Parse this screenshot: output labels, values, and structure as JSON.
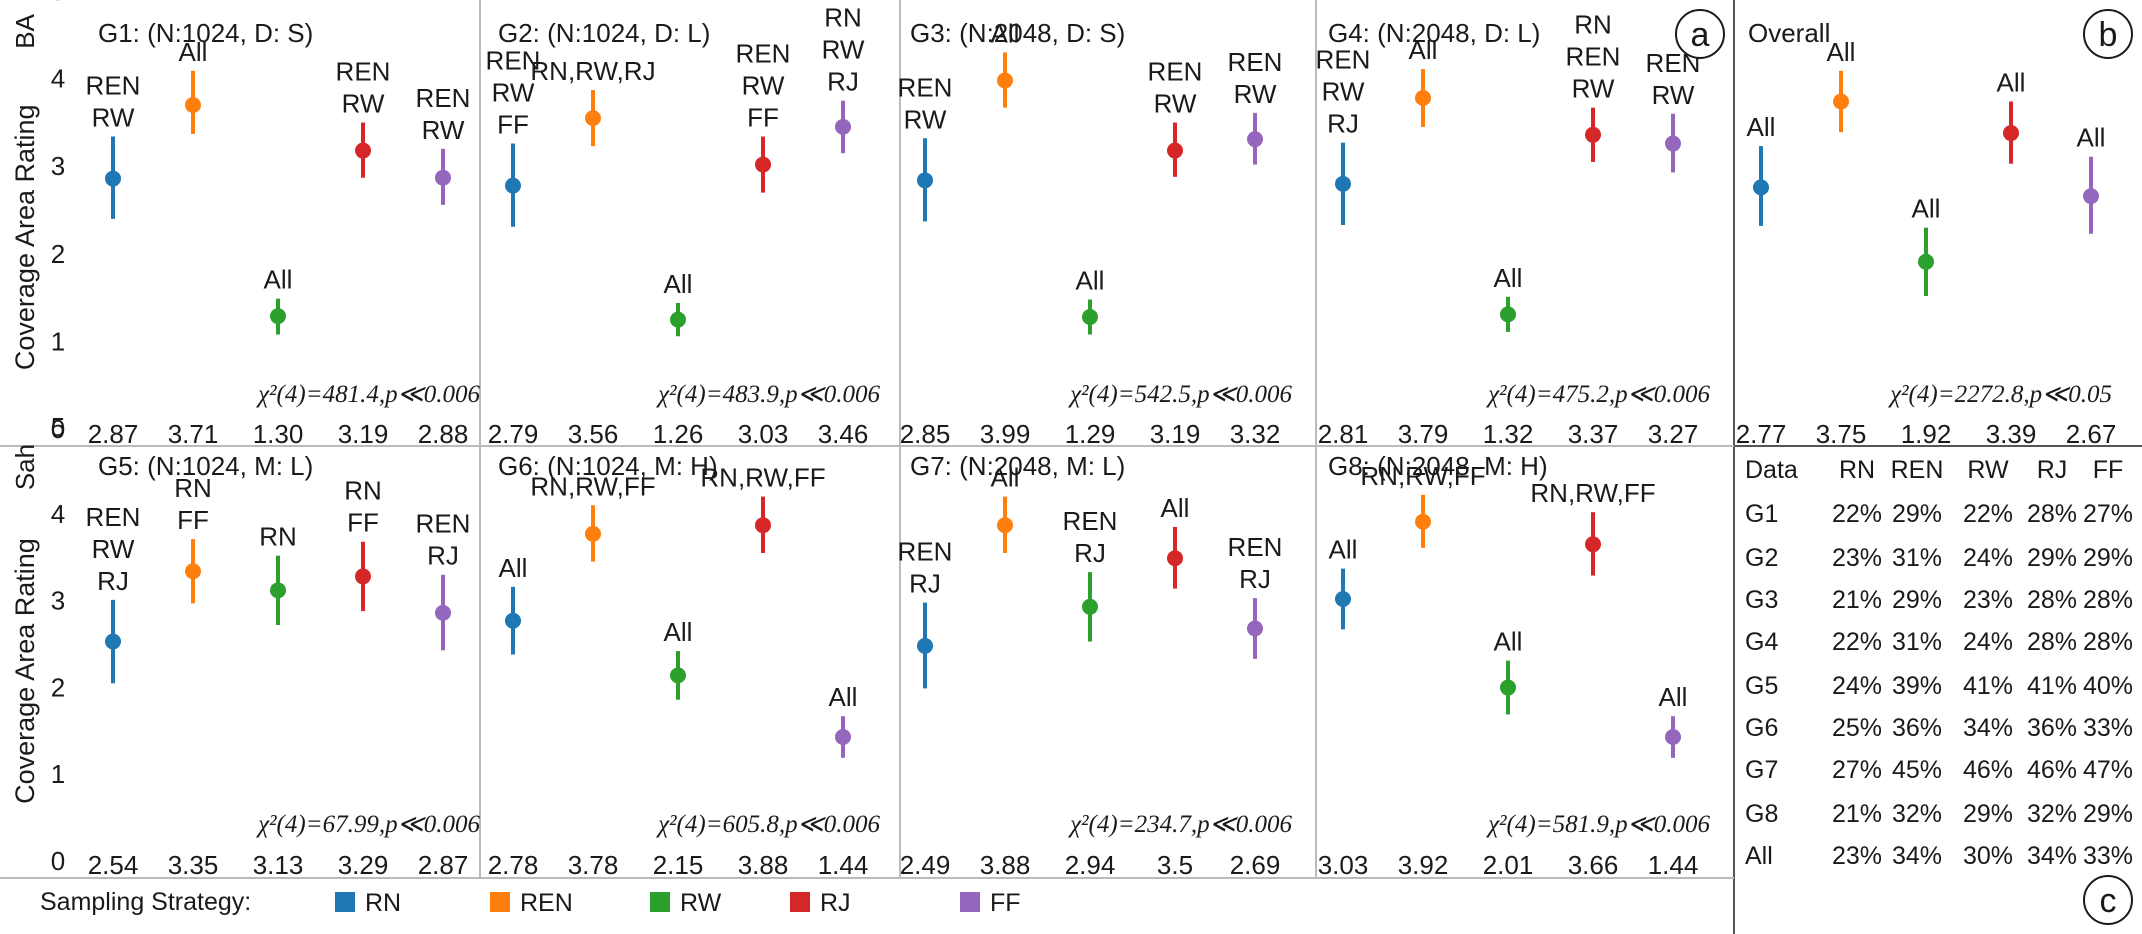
{
  "strategies": [
    "RN",
    "REN",
    "RW",
    "RJ",
    "FF"
  ],
  "colors": {
    "RN": "#1f77b4",
    "REN": "#ff7f0e",
    "RW": "#2ca02c",
    "RJ": "#d62728",
    "FF": "#9467bd"
  },
  "legend_title": "Sampling Strategy:",
  "corner_labels": [
    "a",
    "b",
    "c"
  ],
  "chart_data": [
    {
      "type": "scatter",
      "row_label": "BA",
      "ylabel": "Coverage Area Rating",
      "ylim": [
        0,
        5
      ],
      "yticks": [
        "0",
        "1",
        "2",
        "3",
        "4",
        "5"
      ],
      "panels": [
        {
          "title": "G1: (N:1024, D: S)",
          "stat": "χ²(4)=481.4,p≪0.006",
          "means": [
            "2.87",
            "3.71",
            "1.30",
            "3.19",
            "2.88"
          ],
          "values": [
            2.87,
            3.71,
            1.3,
            3.19,
            2.88
          ],
          "ci": [
            [
              2.41,
              3.35
            ],
            [
              3.38,
              4.1
            ],
            [
              1.09,
              1.5
            ],
            [
              2.88,
              3.51
            ],
            [
              2.57,
              3.21
            ]
          ],
          "labels": [
            [
              "REN",
              "RW"
            ],
            [
              "All"
            ],
            [
              "All"
            ],
            [
              "REN",
              "RW"
            ],
            [
              "REN",
              "RW"
            ]
          ]
        },
        {
          "title": "G2: (N:1024, D: L)",
          "stat": "χ²(4)=483.9,p≪0.006",
          "means": [
            "2.79",
            "3.56",
            "1.26",
            "3.03",
            "3.46"
          ],
          "values": [
            2.79,
            3.56,
            1.26,
            3.03,
            3.46
          ],
          "ci": [
            [
              2.32,
              3.27
            ],
            [
              3.24,
              3.88
            ],
            [
              1.07,
              1.45
            ],
            [
              2.71,
              3.35
            ],
            [
              3.16,
              3.76
            ]
          ],
          "labels": [
            [
              "REN",
              "RW",
              "FF"
            ],
            [
              "RN,RW,RJ"
            ],
            [
              "All"
            ],
            [
              "REN",
              "RW",
              "FF"
            ],
            [
              "RN",
              "RW",
              "RJ"
            ]
          ]
        },
        {
          "title": "G3: (N:2048, D: S)",
          "stat": "χ²(4)=542.5,p≪0.006",
          "means": [
            "2.85",
            "3.99",
            "1.29",
            "3.19",
            "3.32"
          ],
          "values": [
            2.85,
            3.99,
            1.29,
            3.19,
            3.32
          ],
          "ci": [
            [
              2.38,
              3.33
            ],
            [
              3.68,
              4.31
            ],
            [
              1.09,
              1.49
            ],
            [
              2.89,
              3.51
            ],
            [
              3.03,
              3.62
            ]
          ],
          "labels": [
            [
              "REN",
              "RW"
            ],
            [
              "All"
            ],
            [
              "All"
            ],
            [
              "REN",
              "RW"
            ],
            [
              "REN",
              "RW"
            ]
          ]
        },
        {
          "title": "G4: (N:2048, D: L)",
          "stat": "χ²(4)=475.2,p≪0.006",
          "means": [
            "2.81",
            "3.79",
            "1.32",
            "3.37",
            "3.27"
          ],
          "values": [
            2.81,
            3.79,
            1.32,
            3.37,
            3.27
          ],
          "ci": [
            [
              2.34,
              3.28
            ],
            [
              3.46,
              4.12
            ],
            [
              1.12,
              1.52
            ],
            [
              3.06,
              3.68
            ],
            [
              2.94,
              3.61
            ]
          ],
          "labels": [
            [
              "REN",
              "RW",
              "RJ"
            ],
            [
              "All"
            ],
            [
              "All"
            ],
            [
              "RN",
              "REN",
              "RW"
            ],
            [
              "REN",
              "RW"
            ]
          ]
        },
        {
          "title": "Overall",
          "stat": "χ²(4)=2272.8,p≪0.05",
          "means": [
            "2.77",
            "3.75",
            "1.92",
            "3.39",
            "2.67"
          ],
          "values": [
            2.77,
            3.75,
            1.92,
            3.39,
            2.67
          ],
          "ci": [
            [
              2.33,
              3.24
            ],
            [
              3.4,
              4.1
            ],
            [
              1.53,
              2.31
            ],
            [
              3.04,
              3.75
            ],
            [
              2.24,
              3.12
            ]
          ],
          "labels": [
            [
              "All"
            ],
            [
              "All"
            ],
            [
              "All"
            ],
            [
              "All"
            ],
            [
              "All"
            ]
          ]
        }
      ]
    },
    {
      "type": "scatter",
      "row_label": "Sah",
      "ylabel": "Coverage Area Rating",
      "ylim": [
        0,
        5
      ],
      "yticks": [
        "0",
        "1",
        "2",
        "3",
        "4",
        "5"
      ],
      "panels": [
        {
          "title": "G5: (N:1024, M: L)",
          "stat": "χ²(4)=67.99,p≪0.006",
          "means": [
            "2.54",
            "3.35",
            "3.13",
            "3.29",
            "2.87"
          ],
          "values": [
            2.54,
            3.35,
            3.13,
            3.29,
            2.87
          ],
          "ci": [
            [
              2.06,
              3.02
            ],
            [
              2.98,
              3.72
            ],
            [
              2.73,
              3.53
            ],
            [
              2.89,
              3.69
            ],
            [
              2.44,
              3.31
            ]
          ],
          "labels": [
            [
              "REN",
              "RW",
              "RJ"
            ],
            [
              "RN",
              "FF"
            ],
            [
              "RN"
            ],
            [
              "RN",
              "FF"
            ],
            [
              "REN",
              "RJ"
            ]
          ]
        },
        {
          "title": "G6: (N:1024, M: H)",
          "stat": "χ²(4)=605.8,p≪0.006",
          "means": [
            "2.78",
            "3.78",
            "2.15",
            "3.88",
            "1.44"
          ],
          "values": [
            2.78,
            3.78,
            2.15,
            3.88,
            1.44
          ],
          "ci": [
            [
              2.39,
              3.17
            ],
            [
              3.46,
              4.11
            ],
            [
              1.87,
              2.43
            ],
            [
              3.56,
              4.21
            ],
            [
              1.2,
              1.68
            ]
          ],
          "labels": [
            [
              "All"
            ],
            [
              "RN,RW,FF"
            ],
            [
              "All"
            ],
            [
              "RN,RW,FF"
            ],
            [
              "All"
            ]
          ]
        },
        {
          "title": "G7: (N:2048, M: L)",
          "stat": "χ²(4)=234.7,p≪0.006",
          "means": [
            "2.49",
            "3.88",
            "2.94",
            "3.5",
            "2.69"
          ],
          "values": [
            2.49,
            3.88,
            2.94,
            3.5,
            2.69
          ],
          "ci": [
            [
              2.0,
              2.99
            ],
            [
              3.56,
              4.21
            ],
            [
              2.54,
              3.34
            ],
            [
              3.15,
              3.86
            ],
            [
              2.34,
              3.04
            ]
          ],
          "labels": [
            [
              "REN",
              "RJ"
            ],
            [
              "All"
            ],
            [
              "REN",
              "RJ"
            ],
            [
              "All"
            ],
            [
              "REN",
              "RJ"
            ]
          ]
        },
        {
          "title": "G8: (N:2048, M: H)",
          "stat": "χ²(4)=581.9,p≪0.006",
          "means": [
            "3.03",
            "3.92",
            "2.01",
            "3.66",
            "1.44"
          ],
          "values": [
            3.03,
            3.92,
            2.01,
            3.66,
            1.44
          ],
          "ci": [
            [
              2.68,
              3.38
            ],
            [
              3.62,
              4.23
            ],
            [
              1.7,
              2.32
            ],
            [
              3.3,
              4.03
            ],
            [
              1.2,
              1.68
            ]
          ],
          "labels": [
            [
              "All"
            ],
            [
              "RN,RW,FF"
            ],
            [
              "All"
            ],
            [
              "RN,RW,FF"
            ],
            [
              "All"
            ]
          ]
        }
      ]
    },
    {
      "type": "table",
      "columns": [
        "Data",
        "RN",
        "REN",
        "RW",
        "RJ",
        "FF"
      ],
      "rows": [
        [
          "G1",
          "22%",
          "29%",
          "22%",
          "28%",
          "27%"
        ],
        [
          "G2",
          "23%",
          "31%",
          "24%",
          "29%",
          "29%"
        ],
        [
          "G3",
          "21%",
          "29%",
          "23%",
          "28%",
          "28%"
        ],
        [
          "G4",
          "22%",
          "31%",
          "24%",
          "28%",
          "28%"
        ],
        [
          "G5",
          "24%",
          "39%",
          "41%",
          "41%",
          "40%"
        ],
        [
          "G6",
          "25%",
          "36%",
          "34%",
          "36%",
          "33%"
        ],
        [
          "G7",
          "27%",
          "45%",
          "46%",
          "46%",
          "47%"
        ],
        [
          "G8",
          "21%",
          "32%",
          "29%",
          "32%",
          "29%"
        ],
        [
          "All",
          "23%",
          "34%",
          "30%",
          "34%",
          "33%"
        ]
      ]
    }
  ]
}
